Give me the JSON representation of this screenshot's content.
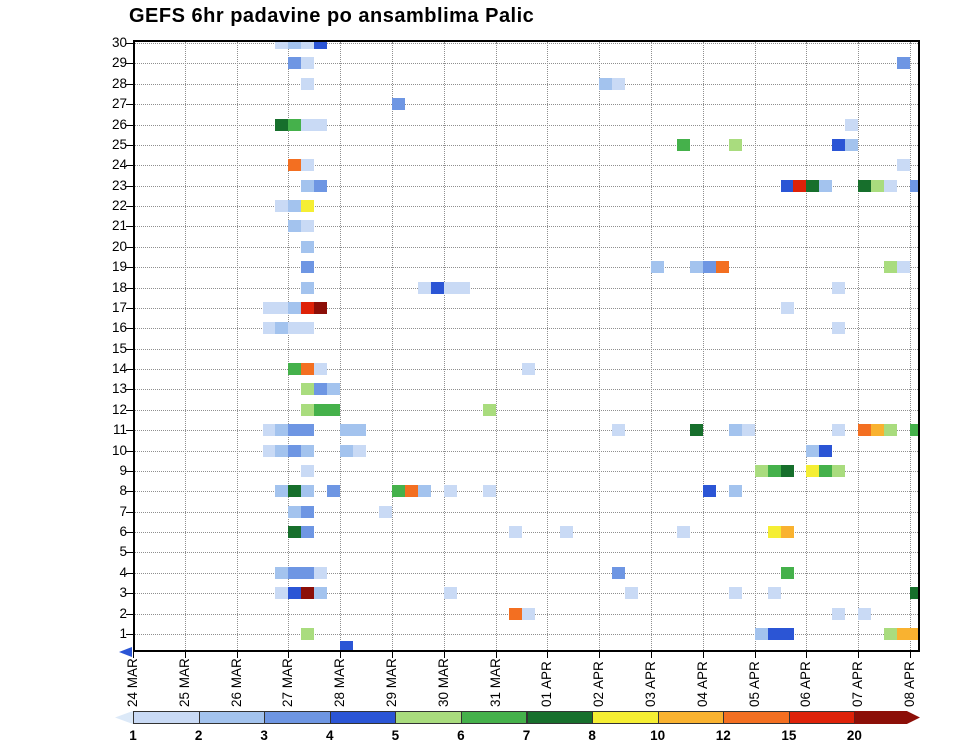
{
  "title": "GEFS 6hr padavine po ansamblima Palic",
  "axis": {
    "x_start_arrow_color": "#2b55d5"
  },
  "chart_data": {
    "type": "heatmap",
    "title": "GEFS 6hr padavine po ansamblima Palic",
    "description": "GEFS ensemble 6-hour precipitation per ensemble member for Palic; rows = ensemble members 1-30, columns = 6h time slots per date",
    "y_members": [
      1,
      2,
      3,
      4,
      5,
      6,
      7,
      8,
      9,
      10,
      11,
      12,
      13,
      14,
      15,
      16,
      17,
      18,
      19,
      20,
      21,
      22,
      23,
      24,
      25,
      26,
      27,
      28,
      29,
      30
    ],
    "x_dates": [
      "24 MAR",
      "25 MAR",
      "26 MAR",
      "27 MAR",
      "28 MAR",
      "29 MAR",
      "30 MAR",
      "31 MAR",
      "01 APR",
      "02 APR",
      "03 APR",
      "04 APR",
      "05 APR",
      "06 APR",
      "07 APR",
      "08 APR"
    ],
    "slots_per_day": 4,
    "slot_hours": 6,
    "grid": "dotted",
    "legend": {
      "position": "bottom",
      "levels": [
        1,
        2,
        3,
        4,
        5,
        6,
        7,
        8,
        10,
        12,
        15,
        20
      ],
      "colors": {
        "1": "#c9daf5",
        "2": "#a3c3ee",
        "3": "#6e96e3",
        "4": "#2b55d5",
        "5": "#a9dc7e",
        "6": "#45b14b",
        "7": "#176f2c",
        "8": "#f5ee33",
        "10": "#f9b230",
        "12": "#f36f21",
        "15": "#de2209",
        "20": "#8c0f08"
      },
      "low_arrow_color": "#dce9f8"
    },
    "cells": [
      [
        30,
        2,
        3,
        1
      ],
      [
        30,
        3,
        0,
        2
      ],
      [
        30,
        3,
        1,
        1
      ],
      [
        30,
        3,
        2,
        4
      ],
      [
        29,
        3,
        0,
        3
      ],
      [
        29,
        3,
        1,
        1
      ],
      [
        29,
        14,
        3,
        3
      ],
      [
        28,
        3,
        1,
        1
      ],
      [
        28,
        9,
        0,
        2
      ],
      [
        28,
        9,
        1,
        1
      ],
      [
        27,
        5,
        0,
        3
      ],
      [
        26,
        2,
        3,
        7
      ],
      [
        26,
        3,
        0,
        6
      ],
      [
        26,
        3,
        1,
        1
      ],
      [
        26,
        3,
        2,
        1
      ],
      [
        26,
        13,
        3,
        1
      ],
      [
        25,
        10,
        2,
        6
      ],
      [
        25,
        11,
        2,
        5
      ],
      [
        25,
        13,
        2,
        4
      ],
      [
        25,
        13,
        3,
        2
      ],
      [
        24,
        3,
        0,
        12
      ],
      [
        24,
        3,
        1,
        1
      ],
      [
        24,
        14,
        3,
        1
      ],
      [
        23,
        3,
        1,
        2
      ],
      [
        23,
        3,
        2,
        3
      ],
      [
        23,
        12,
        2,
        4
      ],
      [
        23,
        12,
        3,
        15
      ],
      [
        23,
        13,
        0,
        7
      ],
      [
        23,
        13,
        1,
        2
      ],
      [
        23,
        14,
        0,
        7
      ],
      [
        23,
        14,
        1,
        5
      ],
      [
        23,
        14,
        2,
        1
      ],
      [
        23,
        15,
        0,
        3
      ],
      [
        22,
        2,
        3,
        1
      ],
      [
        22,
        3,
        0,
        2
      ],
      [
        22,
        3,
        1,
        8
      ],
      [
        21,
        3,
        0,
        2
      ],
      [
        21,
        3,
        1,
        1
      ],
      [
        20,
        3,
        1,
        2
      ],
      [
        19,
        3,
        1,
        3
      ],
      [
        19,
        10,
        0,
        2
      ],
      [
        19,
        10,
        3,
        2
      ],
      [
        19,
        11,
        0,
        3
      ],
      [
        19,
        11,
        1,
        12
      ],
      [
        19,
        14,
        2,
        5
      ],
      [
        19,
        14,
        3,
        1
      ],
      [
        18,
        3,
        1,
        2
      ],
      [
        18,
        5,
        2,
        1
      ],
      [
        18,
        5,
        3,
        4
      ],
      [
        18,
        6,
        0,
        1
      ],
      [
        18,
        6,
        1,
        1
      ],
      [
        18,
        13,
        2,
        1
      ],
      [
        17,
        2,
        2,
        1
      ],
      [
        17,
        2,
        3,
        1
      ],
      [
        17,
        3,
        0,
        2
      ],
      [
        17,
        3,
        1,
        15
      ],
      [
        17,
        3,
        2,
        20
      ],
      [
        17,
        12,
        2,
        1
      ],
      [
        16,
        2,
        2,
        1
      ],
      [
        16,
        2,
        3,
        2
      ],
      [
        16,
        3,
        0,
        1
      ],
      [
        16,
        3,
        1,
        1
      ],
      [
        16,
        13,
        2,
        1
      ],
      [
        14,
        3,
        0,
        6
      ],
      [
        14,
        3,
        1,
        12
      ],
      [
        14,
        3,
        2,
        1
      ],
      [
        14,
        7,
        2,
        1
      ],
      [
        13,
        3,
        1,
        5
      ],
      [
        13,
        3,
        2,
        3
      ],
      [
        13,
        3,
        3,
        2
      ],
      [
        12,
        3,
        1,
        5
      ],
      [
        12,
        3,
        2,
        6
      ],
      [
        12,
        3,
        3,
        6
      ],
      [
        12,
        6,
        3,
        5
      ],
      [
        11,
        2,
        2,
        1
      ],
      [
        11,
        2,
        3,
        2
      ],
      [
        11,
        3,
        0,
        3
      ],
      [
        11,
        3,
        1,
        3
      ],
      [
        11,
        4,
        0,
        2
      ],
      [
        11,
        4,
        1,
        2
      ],
      [
        11,
        9,
        1,
        1
      ],
      [
        11,
        10,
        3,
        7
      ],
      [
        11,
        11,
        2,
        2
      ],
      [
        11,
        11,
        3,
        1
      ],
      [
        11,
        13,
        2,
        1
      ],
      [
        11,
        14,
        0,
        12
      ],
      [
        11,
        14,
        1,
        10
      ],
      [
        11,
        14,
        2,
        5
      ],
      [
        11,
        15,
        0,
        6
      ],
      [
        10,
        2,
        2,
        1
      ],
      [
        10,
        2,
        3,
        2
      ],
      [
        10,
        3,
        0,
        3
      ],
      [
        10,
        3,
        1,
        2
      ],
      [
        10,
        4,
        0,
        2
      ],
      [
        10,
        4,
        1,
        1
      ],
      [
        10,
        13,
        0,
        2
      ],
      [
        10,
        13,
        1,
        4
      ],
      [
        9,
        3,
        1,
        1
      ],
      [
        9,
        12,
        0,
        5
      ],
      [
        9,
        12,
        1,
        6
      ],
      [
        9,
        12,
        2,
        7
      ],
      [
        9,
        13,
        0,
        8
      ],
      [
        9,
        13,
        1,
        6
      ],
      [
        9,
        13,
        2,
        5
      ],
      [
        8,
        2,
        3,
        2
      ],
      [
        8,
        3,
        0,
        7
      ],
      [
        8,
        3,
        1,
        2
      ],
      [
        8,
        3,
        3,
        3
      ],
      [
        8,
        5,
        0,
        6
      ],
      [
        8,
        5,
        1,
        12
      ],
      [
        8,
        5,
        2,
        2
      ],
      [
        8,
        6,
        0,
        1
      ],
      [
        8,
        6,
        3,
        1
      ],
      [
        8,
        11,
        0,
        4
      ],
      [
        8,
        11,
        2,
        2
      ],
      [
        7,
        3,
        0,
        2
      ],
      [
        7,
        3,
        1,
        3
      ],
      [
        7,
        4,
        3,
        1
      ],
      [
        6,
        3,
        0,
        7
      ],
      [
        6,
        3,
        1,
        3
      ],
      [
        6,
        7,
        1,
        1
      ],
      [
        6,
        8,
        1,
        1
      ],
      [
        6,
        10,
        2,
        1
      ],
      [
        6,
        12,
        1,
        8
      ],
      [
        6,
        12,
        2,
        10
      ],
      [
        4,
        2,
        3,
        2
      ],
      [
        4,
        3,
        0,
        3
      ],
      [
        4,
        3,
        1,
        3
      ],
      [
        4,
        3,
        2,
        1
      ],
      [
        4,
        9,
        1,
        3
      ],
      [
        4,
        12,
        2,
        6
      ],
      [
        3,
        2,
        3,
        1
      ],
      [
        3,
        3,
        0,
        4
      ],
      [
        3,
        3,
        1,
        20
      ],
      [
        3,
        3,
        2,
        2
      ],
      [
        3,
        6,
        0,
        1
      ],
      [
        3,
        9,
        2,
        1
      ],
      [
        3,
        11,
        2,
        1
      ],
      [
        3,
        12,
        1,
        1
      ],
      [
        3,
        15,
        0,
        7
      ],
      [
        2,
        7,
        1,
        12
      ],
      [
        2,
        7,
        2,
        1
      ],
      [
        2,
        13,
        2,
        1
      ],
      [
        2,
        14,
        0,
        1
      ],
      [
        1,
        3,
        1,
        5
      ],
      [
        1,
        12,
        0,
        2
      ],
      [
        1,
        12,
        1,
        4
      ],
      [
        1,
        12,
        2,
        4
      ],
      [
        1,
        14,
        2,
        5
      ],
      [
        1,
        14,
        3,
        10
      ],
      [
        1,
        15,
        0,
        10
      ],
      [
        0.35,
        4,
        0,
        4
      ]
    ]
  }
}
